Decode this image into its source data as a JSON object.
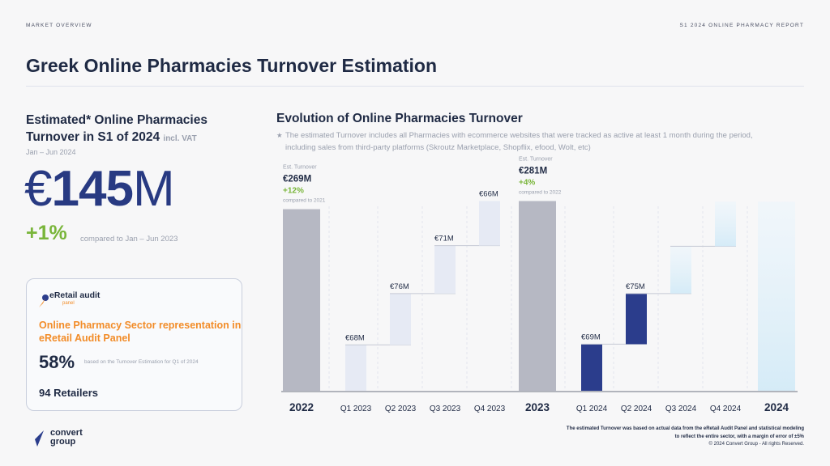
{
  "header": {
    "section": "MARKET OVERVIEW",
    "report": "S1 2024 ONLINE PHARMACY REPORT",
    "title": "Greek Online Pharmacies Turnover Estimation"
  },
  "left": {
    "heading_main": "Estimated* Online Pharmacies Turnover in S1 of 2024",
    "heading_small": "incl. VAT",
    "period": "Jan – Jun 2024",
    "currency": "€",
    "value": "145",
    "unit": "M",
    "growth": "+1%",
    "growth_note": "compared to Jan – Jun 2023"
  },
  "panel": {
    "logo_name": "eRetail audit",
    "logo_sub": "panel",
    "title": "Online Pharmacy Sector representation in eRetail Audit Panel",
    "pct": "58%",
    "pct_note": "based on the Turnover Estimation for Q1 of 2024",
    "retailers": "94 Retailers"
  },
  "right": {
    "heading": "Evolution of Online Pharmacies Turnover",
    "note_star": "★",
    "note": "The estimated Turnover includes all Pharmacies with ecommerce websites that were tracked as active at least 1 month during the period, including sales from third-party platforms (Skroutz Marketplace, Shopflix, efood, Wolt, etc)"
  },
  "footer": {
    "logo_name": "convert group",
    "note": "The estimated Turnover was based on actual data from the eRetail Audit Panel and statistical modeling to reflect the entire sector, with a margin of error of ±5%",
    "copyright": "© 2024 Convert Group - All rights Reserved."
  },
  "colors": {
    "total": "#b6b8c3",
    "q_2023": "#e6eaf4",
    "q_2024": "#2b3d8c",
    "future": "#dff0fa",
    "growth": "#79b53a",
    "accent": "#f28c28",
    "text": "#1f2a44"
  },
  "chart_data": {
    "type": "waterfall",
    "ylim": [
      0,
      290
    ],
    "categories": [
      "2022",
      "Q1 2023",
      "Q2 2023",
      "Q3 2023",
      "Q4 2023",
      "2023",
      "Q1 2024",
      "Q2 2024",
      "Q3 2024",
      "Q4 2024",
      "2024"
    ],
    "bars": [
      {
        "label": "2022",
        "kind": "total",
        "value": 269,
        "annotation": {
          "title": "Est. Turnover",
          "value": "€269M",
          "change": "+12%",
          "note": "compared to 2021"
        }
      },
      {
        "label": "Q1 2023",
        "kind": "q2023",
        "start": 0,
        "value": 68,
        "value_label": "€68M"
      },
      {
        "label": "Q2 2023",
        "kind": "q2023",
        "start": 68,
        "value": 76,
        "value_label": "€76M"
      },
      {
        "label": "Q3 2023",
        "kind": "q2023",
        "start": 144,
        "value": 71,
        "value_label": "€71M"
      },
      {
        "label": "Q4 2023",
        "kind": "q2023",
        "start": 215,
        "value": 66,
        "value_label": "€66M"
      },
      {
        "label": "2023",
        "kind": "total",
        "value": 281,
        "annotation": {
          "title": "Est. Turnover",
          "value": "€281M",
          "change": "+4%",
          "note": "compared to 2022"
        }
      },
      {
        "label": "Q1 2024",
        "kind": "q2024",
        "start": 0,
        "value": 69,
        "value_label": "€69M"
      },
      {
        "label": "Q2 2024",
        "kind": "q2024",
        "start": 69,
        "value": 75,
        "value_label": "€75M"
      },
      {
        "label": "Q3 2024",
        "kind": "future",
        "start": 144,
        "value": 70,
        "value_label": ""
      },
      {
        "label": "Q4 2024",
        "kind": "future",
        "start": 214,
        "value": 66,
        "value_label": ""
      },
      {
        "label": "2024",
        "kind": "future_total",
        "value": 280,
        "value_label": ""
      }
    ]
  }
}
